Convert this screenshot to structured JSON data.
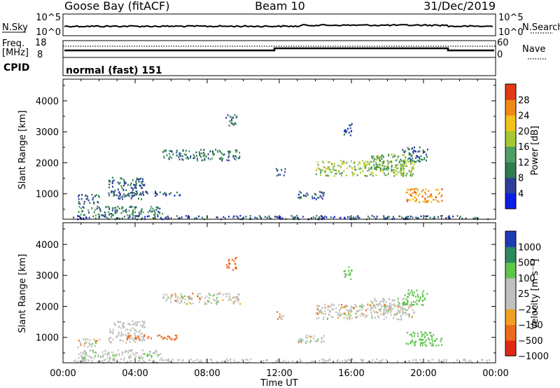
{
  "header": {
    "station": "Goose Bay (fitACF)",
    "beam": "Beam 10",
    "date": "31/Dec/2019"
  },
  "summary": {
    "nsky_label": "N.Sky",
    "nsky_ticks": [
      "10^5",
      "10^0"
    ],
    "nsearch_label": "N.Search",
    "nsearch_ticks": [
      "10^5",
      "10^0"
    ],
    "freq_label": "Freq.",
    "freq_unit": "[MHz]",
    "freq_ticks": [
      "18",
      "8"
    ],
    "nave_label": "Nave",
    "nave_ticks": [
      "60",
      "0"
    ],
    "cpid_label": "CPID",
    "cpid_value": "normal (fast) 151"
  },
  "chart_data": [
    {
      "type": "heatmap",
      "title": "",
      "ylabel": "Slant Range [km]",
      "xlabel": "",
      "ylim": [
        180,
        4700
      ],
      "yticks": [
        "1000",
        "2000",
        "3000",
        "4000"
      ],
      "colorbar": {
        "label": "Power [dB]",
        "ticks": [
          "4",
          "8",
          "12",
          "16",
          "20",
          "24",
          "28"
        ],
        "colors": [
          "#0a1ee6",
          "#2d3f9a",
          "#2e7c4f",
          "#4f9e62",
          "#a6c832",
          "#f2c11b",
          "#ef8a16",
          "#e13a16"
        ]
      },
      "regions": [
        {
          "t0": 0.5,
          "t1": 23.8,
          "r0": 200,
          "r1": 320,
          "v": 9
        },
        {
          "t0": 0.8,
          "t1": 5.5,
          "r0": 320,
          "r1": 620,
          "v": 12
        },
        {
          "t0": 0.8,
          "t1": 2.0,
          "r0": 700,
          "r1": 1000,
          "v": 10
        },
        {
          "t0": 2.5,
          "t1": 4.5,
          "r0": 850,
          "r1": 1550,
          "v": 10
        },
        {
          "t0": 3.5,
          "t1": 6.5,
          "r0": 950,
          "r1": 1100,
          "v": 9
        },
        {
          "t0": 5.5,
          "t1": 9.8,
          "r0": 2100,
          "r1": 2450,
          "v": 12
        },
        {
          "t0": 11.8,
          "t1": 12.3,
          "r0": 1600,
          "r1": 1850,
          "v": 11
        },
        {
          "t0": 13.0,
          "t1": 14.5,
          "r0": 850,
          "r1": 1100,
          "v": 9
        },
        {
          "t0": 14.0,
          "t1": 19.5,
          "r0": 1600,
          "r1": 2100,
          "v": 19
        },
        {
          "t0": 17.0,
          "t1": 19.0,
          "r0": 1800,
          "r1": 2300,
          "v": 16
        },
        {
          "t0": 18.8,
          "t1": 20.2,
          "r0": 2050,
          "r1": 2550,
          "v": 11
        },
        {
          "t0": 19.0,
          "t1": 21.0,
          "r0": 750,
          "r1": 1200,
          "v": 27
        },
        {
          "t0": 9.0,
          "t1": 9.6,
          "r0": 3200,
          "r1": 3600,
          "v": 11
        },
        {
          "t0": 15.5,
          "t1": 16.0,
          "r0": 2900,
          "r1": 3300,
          "v": 8
        }
      ]
    },
    {
      "type": "heatmap",
      "title": "",
      "ylabel": "Slant Range [km]",
      "xlabel": "Time UT",
      "ylim": [
        180,
        4700
      ],
      "yticks": [
        "1000",
        "2000",
        "3000",
        "4000"
      ],
      "xticks": [
        "00:00",
        "04:00",
        "08:00",
        "12:00",
        "16:00",
        "20:00",
        "00:00"
      ],
      "xlim": [
        0,
        24
      ],
      "colorbar": {
        "label": "Velocity [m s⁻¹]",
        "ticks": [
          "1000",
          "500",
          "100",
          "25",
          "−25",
          "−100",
          "−500",
          "−1000"
        ],
        "colors": [
          "#1f3cb4",
          "#2c8a5e",
          "#5ec64a",
          "#c0c0bc",
          "#c0c0bc",
          "#efa024",
          "#eb6c1c",
          "#e12a14"
        ]
      },
      "regions": [
        {
          "t0": 0.5,
          "t1": 23.8,
          "r0": 200,
          "r1": 320,
          "v": 60
        },
        {
          "t0": 0.8,
          "t1": 5.5,
          "r0": 320,
          "r1": 620,
          "v": 80
        },
        {
          "t0": 0.8,
          "t1": 2.0,
          "r0": 700,
          "r1": 1000,
          "v": 0
        },
        {
          "t0": 2.5,
          "t1": 4.5,
          "r0": 850,
          "r1": 1550,
          "v": 40
        },
        {
          "t0": 3.5,
          "t1": 6.5,
          "r0": 950,
          "r1": 1100,
          "v": -150
        },
        {
          "t0": 5.5,
          "t1": 9.8,
          "r0": 2100,
          "r1": 2450,
          "v": 0
        },
        {
          "t0": 11.8,
          "t1": 12.3,
          "r0": 1600,
          "r1": 1850,
          "v": 0
        },
        {
          "t0": 13.0,
          "t1": 14.5,
          "r0": 850,
          "r1": 1100,
          "v": 0
        },
        {
          "t0": 14.0,
          "t1": 19.5,
          "r0": 1600,
          "r1": 2100,
          "v": 0
        },
        {
          "t0": 17.0,
          "t1": 19.0,
          "r0": 1800,
          "r1": 2300,
          "v": 5
        },
        {
          "t0": 18.8,
          "t1": 20.2,
          "r0": 2050,
          "r1": 2550,
          "v": 300
        },
        {
          "t0": 19.0,
          "t1": 21.0,
          "r0": 750,
          "r1": 1200,
          "v": 150
        },
        {
          "t0": 9.0,
          "t1": 9.6,
          "r0": 3200,
          "r1": 3600,
          "v": -200
        },
        {
          "t0": 15.5,
          "t1": 16.0,
          "r0": 2900,
          "r1": 3300,
          "v": 200
        }
      ]
    }
  ]
}
